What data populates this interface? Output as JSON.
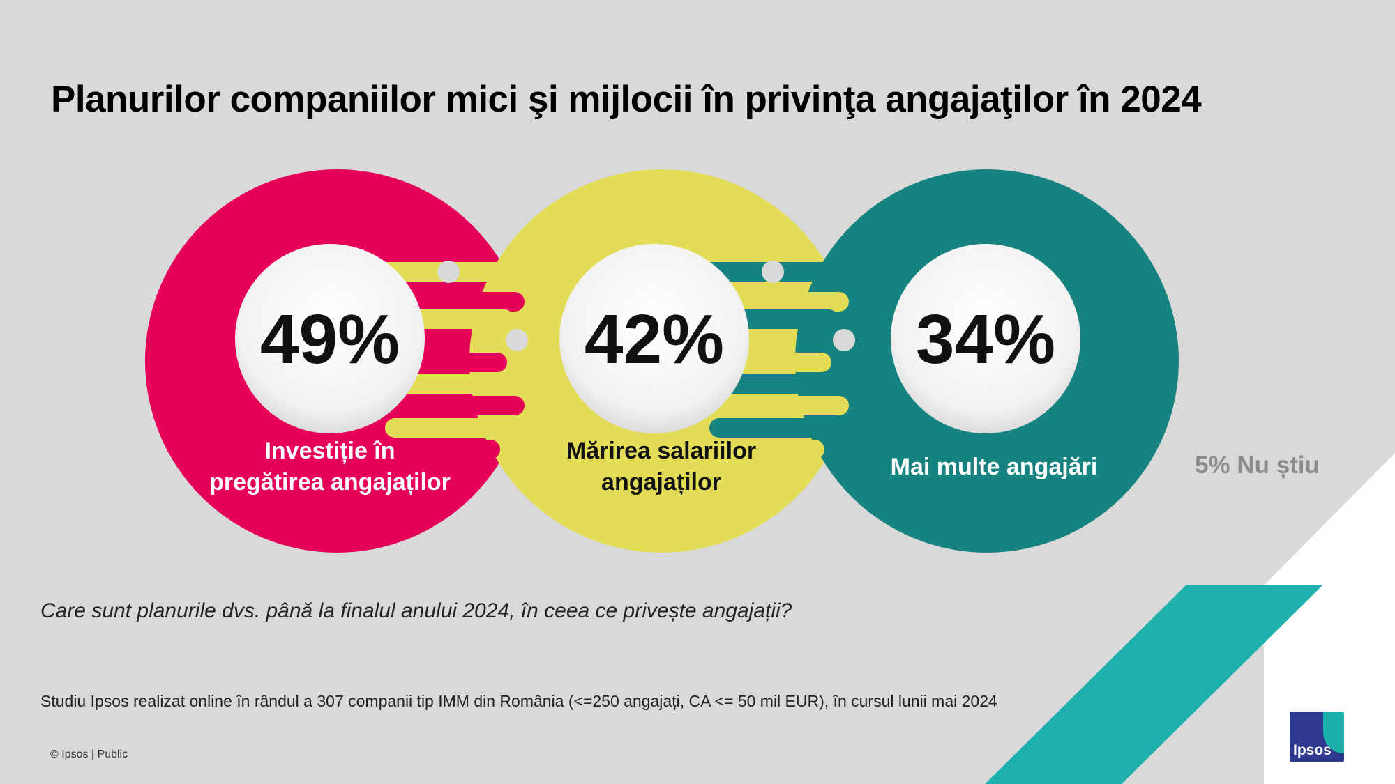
{
  "title": "Planurilor companiilor mici şi mijlocii în privinţa angajaţilor în 2024",
  "question": "Care sunt planurile dvs. până la finalul anului 2024, în ceea ce privește angajații?",
  "source": "Studiu Ipsos realizat online în rândul a 307 companii tip IMM din România (<=250 angajați, CA <= 50 mil EUR), în cursul lunii mai 2024",
  "copyright": "© Ipsos | Public",
  "dont_know": "5% Nu știu",
  "logo_text": "Ipsos",
  "colors": {
    "pink": "#e6005a",
    "yellow": "#e2dc57",
    "teal": "#178381",
    "accent_teal": "#1eb0ad",
    "background": "#d9d9d9"
  },
  "chart_data": {
    "type": "bubble",
    "unit": "%",
    "items": [
      {
        "label_line1": "Investiție în",
        "label_line2": "pregătirea angajaților",
        "value": 49,
        "display": "49%",
        "color": "#e6005a",
        "label_color": "#ffffff"
      },
      {
        "label_line1": "Mărirea salariilor",
        "label_line2": "angajaților",
        "value": 42,
        "display": "42%",
        "color": "#e2dc57",
        "label_color": "#111111"
      },
      {
        "label_line1": "Mai multe angajări",
        "label_line2": "",
        "value": 34,
        "display": "34%",
        "color": "#178381",
        "label_color": "#ffffff"
      }
    ],
    "other": {
      "label": "Nu știu",
      "value": 5
    }
  }
}
